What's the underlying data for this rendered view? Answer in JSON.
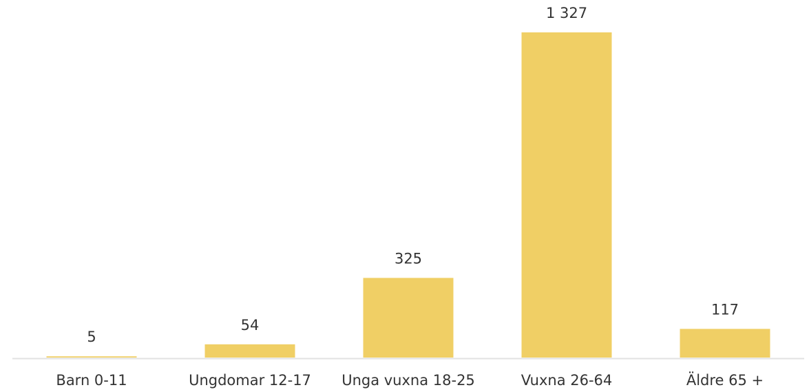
{
  "chart_data": {
    "type": "bar",
    "categories": [
      "Barn 0-11",
      "Ungdomar 12-17",
      "Unga vuxna 18-25",
      "Vuxna 26-64",
      "Äldre 65 +"
    ],
    "values": [
      5,
      54,
      325,
      1327,
      117
    ],
    "value_labels": [
      "5",
      "54",
      "325",
      "1 327",
      "117"
    ],
    "color": "#f0cf65"
  }
}
